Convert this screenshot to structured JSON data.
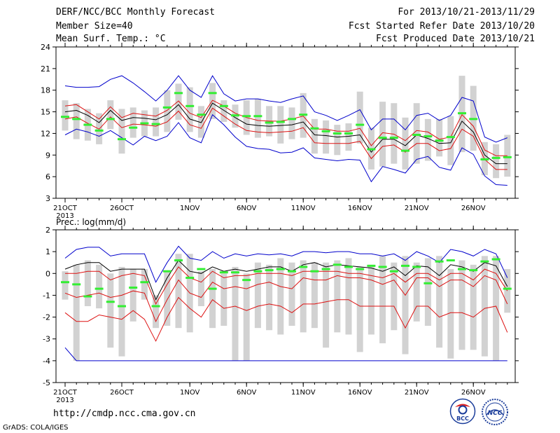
{
  "header": {
    "title": "DERF/NCC/BCC Monthly Forecast",
    "member_size": "Member Size=40",
    "variable": "Mean Surf. Temp.: °C",
    "forecast_period": "For 2013/10/21-2013/11/29",
    "started_date": "Fcst Started Refer Date 2013/10/20",
    "produced_date": "Fcst Produced Date 2013/10/21"
  },
  "footer": {
    "url": "http://cmdp.ncc.cma.gov.cn",
    "credit": "GrADS: COLA/IGES"
  },
  "logos": {
    "left": "BCC",
    "right": "NCC"
  },
  "colors": {
    "box": "#d2d2d2",
    "median": "#33ee33",
    "mean": "#000000",
    "spread": "#dd1111",
    "extreme": "#0000cc"
  },
  "chart_data": [
    {
      "type": "line",
      "title": "",
      "ylabel": "",
      "ylim": [
        3,
        24
      ],
      "yticks": [
        3,
        6,
        9,
        12,
        15,
        18,
        21,
        24
      ],
      "xticks": [
        {
          "day": 0,
          "label": "21OCT",
          "sub": "2013"
        },
        {
          "day": 5,
          "label": "26OCT",
          "sub": ""
        },
        {
          "day": 11,
          "label": "1NOV",
          "sub": ""
        },
        {
          "day": 16,
          "label": "6NOV",
          "sub": ""
        },
        {
          "day": 21,
          "label": "11NOV",
          "sub": ""
        },
        {
          "day": 26,
          "label": "16NOV",
          "sub": ""
        },
        {
          "day": 31,
          "label": "21NOV",
          "sub": ""
        },
        {
          "day": 36,
          "label": "26NOV",
          "sub": ""
        }
      ],
      "x_days": "2013-10-21 .. 2013-11-29 (40 daily values)",
      "series": [
        {
          "role": "max",
          "values": [
            18.6,
            18.4,
            18.4,
            18.5,
            19.5,
            20.0,
            19.0,
            17.8,
            16.5,
            18.0,
            20.0,
            18.0,
            17.0,
            20.0,
            17.5,
            16.5,
            16.8,
            16.8,
            16.5,
            16.3,
            16.8,
            17.2,
            15.0,
            14.5,
            13.8,
            14.5,
            15.3,
            12.5,
            14.0,
            14.0,
            12.5,
            14.5,
            14.8,
            13.8,
            14.5,
            17.0,
            16.5,
            11.5,
            10.8,
            11.4
          ]
        },
        {
          "role": "upper",
          "values": [
            15.8,
            16.0,
            15.0,
            14.0,
            15.7,
            14.2,
            14.8,
            14.6,
            14.4,
            15.2,
            16.5,
            14.8,
            14.2,
            16.6,
            15.8,
            14.8,
            14.2,
            13.8,
            13.7,
            13.7,
            14.0,
            14.4,
            12.6,
            12.6,
            12.3,
            12.3,
            12.7,
            10.3,
            12.1,
            11.9,
            11.0,
            12.4,
            12.2,
            11.2,
            11.5,
            14.6,
            13.0,
            9.7,
            8.9,
            8.9
          ]
        },
        {
          "role": "mean",
          "values": [
            15.0,
            15.2,
            14.5,
            13.5,
            15.2,
            13.8,
            14.2,
            14.1,
            13.9,
            14.6,
            16.0,
            14.0,
            13.5,
            16.2,
            15.2,
            14.2,
            13.3,
            13.1,
            13.0,
            13.1,
            13.2,
            13.6,
            11.8,
            11.7,
            11.5,
            11.6,
            11.8,
            9.4,
            11.2,
            11.2,
            10.3,
            11.8,
            11.3,
            10.6,
            10.7,
            13.7,
            12.2,
            9.0,
            7.8,
            7.8
          ]
        },
        {
          "role": "lower",
          "values": [
            14.0,
            14.3,
            13.4,
            12.6,
            14.3,
            12.8,
            13.3,
            13.2,
            13.0,
            13.6,
            15.1,
            13.2,
            12.7,
            15.5,
            14.4,
            13.3,
            12.4,
            12.2,
            12.1,
            12.2,
            12.3,
            12.8,
            10.7,
            10.6,
            10.6,
            10.6,
            10.9,
            8.5,
            10.2,
            10.4,
            9.4,
            10.6,
            10.6,
            9.6,
            9.9,
            12.6,
            11.6,
            8.4,
            7.0,
            7.0
          ]
        },
        {
          "role": "min",
          "values": [
            11.8,
            12.6,
            12.2,
            11.6,
            12.4,
            11.4,
            10.4,
            11.6,
            11.0,
            11.6,
            13.5,
            11.4,
            10.7,
            14.6,
            13.2,
            11.5,
            10.2,
            9.9,
            9.8,
            9.3,
            9.4,
            10.0,
            8.6,
            8.4,
            8.2,
            8.4,
            8.3,
            5.3,
            7.4,
            7.0,
            6.5,
            8.4,
            8.8,
            7.3,
            6.9,
            10.0,
            9.1,
            6.1,
            4.9,
            4.8
          ]
        },
        {
          "role": "median",
          "values": [
            14.3,
            14.0,
            13.2,
            12.4,
            14.0,
            11.2,
            12.8,
            13.4,
            13.3,
            15.6,
            17.6,
            15.8,
            14.6,
            17.6,
            15.8,
            14.5,
            14.4,
            14.4,
            13.5,
            13.6,
            14.0,
            14.6,
            12.7,
            12.3,
            12.0,
            12.0,
            13.2,
            9.8,
            11.4,
            11.4,
            9.6,
            11.8,
            11.6,
            11.0,
            11.5,
            14.8,
            14.0,
            8.4,
            8.6,
            8.7
          ]
        },
        {
          "role": "box_top",
          "values": [
            16.6,
            16.2,
            15.4,
            14.8,
            16.6,
            15.4,
            15.6,
            15.2,
            15.6,
            18.0,
            18.9,
            18.4,
            15.8,
            19.0,
            16.6,
            16.0,
            16.6,
            16.8,
            15.8,
            15.8,
            15.6,
            17.6,
            14.0,
            13.8,
            13.2,
            13.4,
            17.8,
            12.8,
            16.4,
            16.2,
            14.2,
            16.2,
            14.0,
            14.0,
            14.4,
            20.0,
            18.6,
            10.8,
            10.5,
            11.8
          ]
        },
        {
          "role": "box_bottom",
          "values": [
            12.4,
            11.2,
            11.0,
            10.5,
            12.6,
            9.2,
            11.4,
            11.6,
            11.6,
            12.2,
            13.9,
            12.2,
            11.4,
            14.0,
            13.6,
            12.8,
            11.8,
            11.4,
            11.6,
            10.6,
            11.2,
            11.4,
            9.2,
            9.2,
            9.0,
            9.6,
            10.6,
            7.0,
            7.4,
            7.8,
            7.0,
            7.8,
            8.2,
            8.8,
            7.6,
            9.4,
            9.6,
            6.2,
            5.8,
            6.0
          ]
        }
      ]
    },
    {
      "type": "line",
      "title": "Prec.: log(mm/d)",
      "ylabel": "",
      "ylim": [
        -5,
        2
      ],
      "yticks": [
        -5,
        -4,
        -3,
        -2,
        -1,
        0,
        1,
        2
      ],
      "xticks": [
        {
          "day": 0,
          "label": "21OCT",
          "sub": "2013"
        },
        {
          "day": 5,
          "label": "26OCT",
          "sub": ""
        },
        {
          "day": 11,
          "label": "1NOV",
          "sub": ""
        },
        {
          "day": 16,
          "label": "6NOV",
          "sub": ""
        },
        {
          "day": 21,
          "label": "11NOV",
          "sub": ""
        },
        {
          "day": 26,
          "label": "16NOV",
          "sub": ""
        },
        {
          "day": 31,
          "label": "21NOV",
          "sub": ""
        },
        {
          "day": 36,
          "label": "26NOV",
          "sub": ""
        }
      ],
      "series": [
        {
          "role": "max",
          "values": [
            0.7,
            1.1,
            1.2,
            1.2,
            0.8,
            0.9,
            0.9,
            0.9,
            -0.4,
            0.5,
            1.25,
            0.7,
            0.6,
            1.0,
            0.7,
            0.9,
            0.8,
            0.9,
            0.85,
            0.9,
            0.8,
            1.0,
            1.0,
            0.95,
            1.0,
            1.0,
            0.9,
            0.9,
            0.8,
            0.9,
            0.6,
            1.0,
            0.8,
            0.5,
            1.1,
            1.0,
            0.8,
            1.1,
            0.9,
            -0.2
          ]
        },
        {
          "role": "mean",
          "values": [
            0.2,
            0.4,
            0.5,
            0.5,
            0.1,
            0.2,
            0.2,
            0.2,
            -1.2,
            -0.2,
            0.6,
            0.1,
            0.0,
            0.3,
            0.1,
            0.2,
            0.1,
            0.2,
            0.3,
            0.3,
            0.1,
            0.4,
            0.5,
            0.3,
            0.4,
            0.35,
            0.3,
            0.25,
            0.1,
            0.3,
            -0.1,
            0.35,
            0.3,
            -0.1,
            0.4,
            0.3,
            0.1,
            0.5,
            0.35,
            -0.6
          ]
        },
        {
          "role": "upper",
          "values": [
            0.0,
            0.0,
            0.1,
            0.1,
            -0.3,
            -0.1,
            0.0,
            -0.1,
            -1.4,
            -0.5,
            0.3,
            -0.2,
            -0.4,
            0.1,
            -0.2,
            -0.1,
            -0.1,
            0.0,
            0.0,
            0.0,
            -0.1,
            0.1,
            0.1,
            0.1,
            0.1,
            0.0,
            0.0,
            -0.1,
            -0.2,
            0.0,
            -0.4,
            0.0,
            0.0,
            -0.3,
            0.0,
            0.0,
            -0.3,
            0.2,
            0.0,
            -0.8
          ]
        },
        {
          "role": "lower",
          "values": [
            -0.9,
            -1.1,
            -1.0,
            -0.9,
            -1.1,
            -1.0,
            -0.8,
            -0.9,
            -2.2,
            -1.2,
            -0.3,
            -0.9,
            -1.1,
            -0.4,
            -0.7,
            -0.6,
            -0.7,
            -0.5,
            -0.4,
            -0.6,
            -0.7,
            -0.2,
            -0.3,
            -0.3,
            -0.1,
            -0.2,
            -0.2,
            -0.3,
            -0.5,
            -0.3,
            -1.0,
            -0.2,
            -0.2,
            -0.6,
            -0.3,
            -0.3,
            -0.6,
            -0.1,
            -0.3,
            -1.4
          ]
        },
        {
          "role": "lower2",
          "values": [
            -1.8,
            -2.2,
            -2.2,
            -1.9,
            -2.0,
            -2.1,
            -1.7,
            -2.1,
            -3.1,
            -2.0,
            -1.1,
            -1.6,
            -2.0,
            -1.2,
            -1.6,
            -1.5,
            -1.7,
            -1.5,
            -1.4,
            -1.5,
            -1.8,
            -1.4,
            -1.4,
            -1.3,
            -1.2,
            -1.2,
            -1.5,
            -1.5,
            -1.5,
            -1.5,
            -2.5,
            -1.5,
            -1.5,
            -2.0,
            -1.8,
            -1.8,
            -2.0,
            -1.6,
            -1.5,
            -2.7
          ]
        },
        {
          "role": "min",
          "values": [
            -3.4,
            -4.0,
            -4.0,
            -4.0,
            -4.0,
            -4.0,
            -4.0,
            -4.0,
            -4.0,
            -4.0,
            -4.0,
            -4.0,
            -4.0,
            -4.0,
            -4.0,
            -4.0,
            -4.0,
            -4.0,
            -4.0,
            -4.0,
            -4.0,
            -4.0,
            -4.0,
            -4.0,
            -4.0,
            -4.0,
            -4.0,
            -4.0,
            -4.0,
            -4.0,
            -4.0,
            -4.0,
            -4.0,
            -4.0,
            -4.0,
            -4.0,
            -4.0,
            -4.0,
            -4.0,
            -4.0
          ]
        },
        {
          "role": "median",
          "values": [
            -0.4,
            -0.5,
            -1.05,
            -0.7,
            -1.3,
            -1.5,
            -0.65,
            -0.4,
            -1.5,
            0.1,
            0.6,
            -0.2,
            0.2,
            -0.7,
            0.05,
            0.05,
            -0.3,
            0.1,
            0.15,
            0.2,
            0.1,
            0.3,
            0.1,
            0.2,
            0.4,
            0.3,
            0.2,
            0.35,
            0.3,
            0.1,
            0.35,
            0.3,
            -0.45,
            0.55,
            0.6,
            0.2,
            0.15,
            0.55,
            0.65,
            -0.7
          ]
        },
        {
          "role": "box_top",
          "values": [
            0.1,
            0.4,
            0.6,
            0.4,
            0.0,
            0.3,
            0.2,
            0.2,
            -1.0,
            0.1,
            0.9,
            0.9,
            0.1,
            0.2,
            0.0,
            0.3,
            0.0,
            0.5,
            0.4,
            0.7,
            0.5,
            0.6,
            0.5,
            0.5,
            0.6,
            0.7,
            0.3,
            0.4,
            0.8,
            0.5,
            0.8,
            0.5,
            0.7,
            0.8,
            0.2,
            0.6,
            0.4,
            0.8,
            0.8,
            0.2
          ]
        },
        {
          "role": "box_bottom",
          "values": [
            -1.2,
            -4.0,
            -1.5,
            -1.6,
            -3.4,
            -3.8,
            -2.2,
            -1.2,
            -2.5,
            -2.4,
            -2.5,
            -2.7,
            -1.5,
            -2.5,
            -2.4,
            -4.0,
            -4.0,
            -2.5,
            -2.6,
            -2.8,
            -2.4,
            -2.7,
            -2.5,
            -3.4,
            -2.7,
            -2.8,
            -3.6,
            -2.8,
            -3.2,
            -2.6,
            -3.7,
            -2.2,
            -2.4,
            -3.4,
            -3.9,
            -3.5,
            -3.5,
            -3.8,
            -4.0,
            -1.8
          ]
        }
      ]
    }
  ]
}
